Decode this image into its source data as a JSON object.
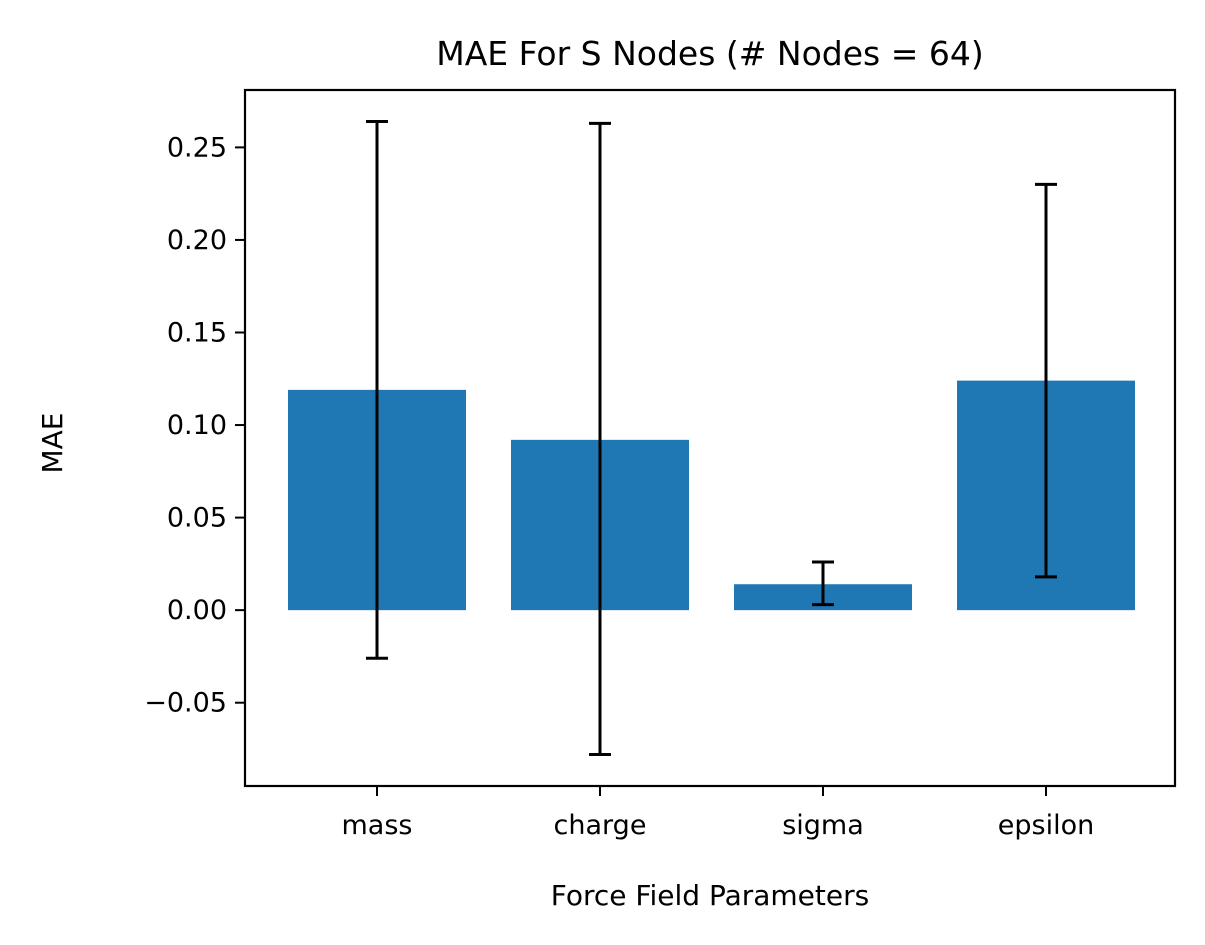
{
  "chart_data": {
    "type": "bar",
    "title": "MAE For S Nodes (# Nodes = 64)",
    "xlabel": "Force Field Parameters",
    "ylabel": "MAE",
    "categories": [
      "mass",
      "charge",
      "sigma",
      "epsilon"
    ],
    "values": [
      0.119,
      0.092,
      0.014,
      0.124
    ],
    "error_bars": [
      {
        "low": -0.026,
        "high": 0.264
      },
      {
        "low": -0.078,
        "high": 0.263
      },
      {
        "low": 0.003,
        "high": 0.026
      },
      {
        "low": 0.018,
        "high": 0.23
      }
    ],
    "ylim": [
      -0.095,
      0.281
    ],
    "yticks": [
      -0.05,
      0.0,
      0.05,
      0.1,
      0.15,
      0.2,
      0.25
    ],
    "ytick_labels": [
      "−0.05",
      "0.00",
      "0.05",
      "0.10",
      "0.15",
      "0.20",
      "0.25"
    ],
    "grid": false,
    "colors": {
      "bar": "#1f77b4",
      "errorbar": "#000000",
      "axes": "#000000"
    }
  }
}
